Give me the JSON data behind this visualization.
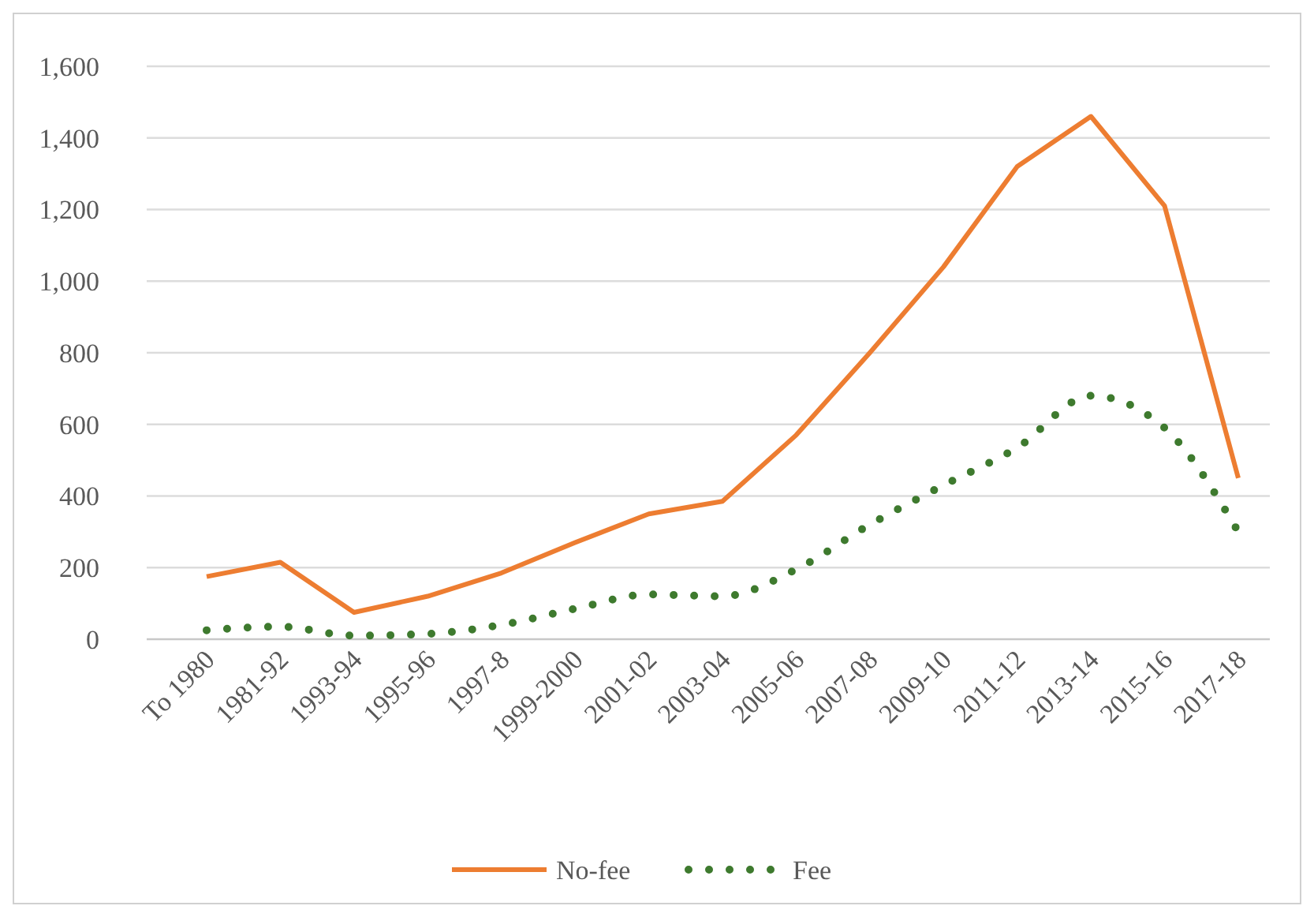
{
  "chart_data": {
    "type": "line",
    "categories": [
      "To 1980",
      "1981-92",
      "1993-94",
      "1995-96",
      "1997-8",
      "1999-2000",
      "2001-02",
      "2003-04",
      "2005-06",
      "2007-08",
      "2009-10",
      "2011-12",
      "2013-14",
      "2015-16",
      "2017-18"
    ],
    "series": [
      {
        "name": "No-fee",
        "color": "#ed7d31",
        "line_style": "solid",
        "values": [
          175,
          215,
          75,
          120,
          185,
          270,
          350,
          385,
          570,
          800,
          1040,
          1320,
          1460,
          1210,
          450
        ]
      },
      {
        "name": "Fee",
        "color": "#3e7a2e",
        "line_style": "dotted",
        "values": [
          25,
          35,
          10,
          15,
          40,
          85,
          125,
          120,
          195,
          320,
          430,
          535,
          680,
          590,
          300
        ]
      }
    ],
    "ylim": [
      0,
      1600
    ],
    "yticks": [
      {
        "value": 0,
        "label": "0"
      },
      {
        "value": 200,
        "label": "200"
      },
      {
        "value": 400,
        "label": "400"
      },
      {
        "value": 600,
        "label": "600"
      },
      {
        "value": 800,
        "label": "800"
      },
      {
        "value": 1000,
        "label": "1,000"
      },
      {
        "value": 1200,
        "label": "1,200"
      },
      {
        "value": 1400,
        "label": "1,400"
      },
      {
        "value": 1600,
        "label": "1,600"
      }
    ],
    "grid": "y",
    "legend": "bottom",
    "marker": "none"
  }
}
